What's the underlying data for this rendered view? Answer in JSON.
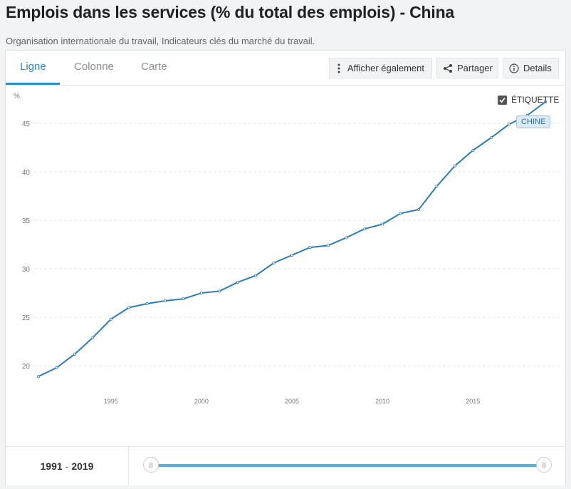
{
  "header": {
    "title": "Emplois dans les services (% du total des emplois) - China",
    "subtitle": "Organisation internationale du travail, Indicateurs clés du marché du travail."
  },
  "tabs": [
    {
      "label": "Ligne",
      "active": true
    },
    {
      "label": "Colonne",
      "active": false
    },
    {
      "label": "Carte",
      "active": false
    }
  ],
  "toolbar": {
    "also_show_label": "Afficher également",
    "share_label": "Partager",
    "details_label": "Details"
  },
  "legend": {
    "label_toggle": "ÉTIQUETTE",
    "label_checked": true,
    "series_tag": "CHINE"
  },
  "range": {
    "start": "1991",
    "sep": "-",
    "end": "2019"
  },
  "colors": {
    "accent": "#2b8ccf",
    "line": "#2f7bb5",
    "slider": "#5aafe0"
  },
  "chart_data": {
    "type": "line",
    "ylabel": "%",
    "ylim": [
      17,
      48
    ],
    "xlim": [
      1991,
      2019
    ],
    "yticks": [
      20,
      25,
      30,
      35,
      40,
      45
    ],
    "xticks": [
      1995,
      2000,
      2005,
      2010,
      2015
    ],
    "grid": true,
    "series": [
      {
        "name": "CHINE",
        "x": [
          1991,
          1992,
          1993,
          1994,
          1995,
          1996,
          1997,
          1998,
          1999,
          2000,
          2001,
          2002,
          2003,
          2004,
          2005,
          2006,
          2007,
          2008,
          2009,
          2010,
          2011,
          2012,
          2013,
          2014,
          2015,
          2016,
          2017,
          2018,
          2019
        ],
        "values": [
          18.9,
          19.8,
          21.2,
          22.9,
          24.8,
          26.0,
          26.4,
          26.7,
          26.9,
          27.5,
          27.7,
          28.6,
          29.3,
          30.6,
          31.4,
          32.2,
          32.4,
          33.2,
          34.1,
          34.6,
          35.7,
          36.1,
          38.5,
          40.6,
          42.2,
          43.5,
          44.9,
          45.8,
          47.2
        ]
      }
    ]
  }
}
